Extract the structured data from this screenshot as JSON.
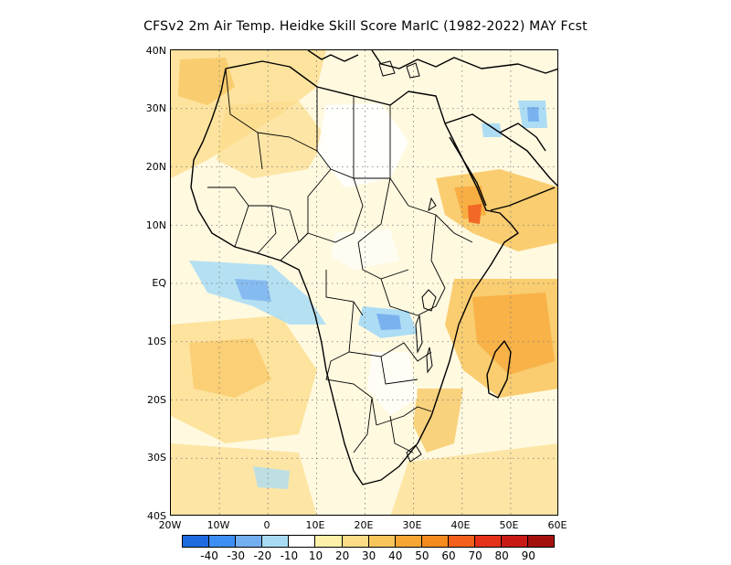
{
  "title": "CFSv2  2m Air Temp. Heidke Skill Score MarIC (1982-2022) MAY Fcst",
  "map": {
    "lat_labels": [
      "40N",
      "30N",
      "20N",
      "10N",
      "EQ",
      "10S",
      "20S",
      "30S",
      "40S"
    ],
    "lon_labels": [
      "20W",
      "10W",
      "0",
      "10E",
      "20E",
      "30E",
      "40E",
      "50E",
      "60E"
    ],
    "lat_range": [
      -40,
      40
    ],
    "lon_range": [
      -20,
      60
    ],
    "grid": "dotted"
  },
  "colorbar": {
    "colors": [
      "#1e6be0",
      "#3d8ef2",
      "#73aef0",
      "#a9dcf4",
      "#ffffff",
      "#fff2a8",
      "#fcdc86",
      "#f8c55c",
      "#f7a634",
      "#f58a1e",
      "#f2601b",
      "#e5321a",
      "#c81a16",
      "#a3110f"
    ],
    "labels": [
      "-40",
      "-30",
      "-20",
      "-10",
      "10",
      "20",
      "30",
      "40",
      "50",
      "60",
      "70",
      "80",
      "90"
    ]
  }
}
